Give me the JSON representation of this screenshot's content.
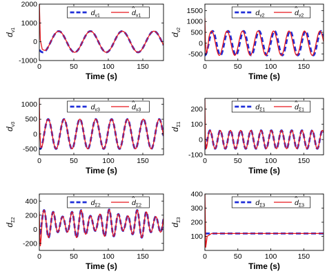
{
  "figure": {
    "background": "#ffffff"
  },
  "chart_data": [
    {
      "type": "line",
      "ylabel": {
        "main": "d",
        "sub": "v1"
      },
      "xlabel": "Time (s)",
      "xlim": [
        0,
        180
      ],
      "ylim": [
        -1000,
        2000
      ],
      "xticks": [
        "0",
        "50",
        "100",
        "150"
      ],
      "yticks": [
        "-1000",
        "0",
        "1000",
        "2000"
      ],
      "grid": false,
      "legend": "top",
      "signal": {
        "offset": 0,
        "amplitude": 560,
        "period": 46,
        "phase_deg": -130
      },
      "transient": {
        "spike": 2000,
        "dip": -400,
        "settle_s": 12
      },
      "series": [
        {
          "name": "d",
          "sub": "v1",
          "hat": false,
          "color": "#1f2ed8",
          "style": "dashed"
        },
        {
          "name": "d",
          "sub": "v1",
          "hat": true,
          "color": "#e8151b",
          "style": "solid"
        }
      ]
    },
    {
      "type": "line",
      "ylabel": {
        "main": "d",
        "sub": "v2"
      },
      "xlabel": "Time (s)",
      "xlim": [
        0,
        180
      ],
      "ylim": [
        -800,
        1800
      ],
      "xticks": [
        "0",
        "50",
        "100",
        "150"
      ],
      "yticks": [
        "-500",
        "0",
        "500",
        "1000",
        "1500"
      ],
      "grid": false,
      "legend": "top",
      "signal": {
        "offset": 0,
        "amplitude": 560,
        "period": 23.5,
        "phase_deg": -90
      },
      "transient": {
        "spike": 1100,
        "dip": -450,
        "settle_s": 6
      },
      "red_phase_lead_deg": 25,
      "series": [
        {
          "name": "d",
          "sub": "v2",
          "hat": false,
          "color": "#1f2ed8",
          "style": "dashed"
        },
        {
          "name": "d",
          "sub": "v2",
          "hat": true,
          "color": "#e8151b",
          "style": "solid"
        }
      ]
    },
    {
      "type": "line",
      "ylabel": {
        "main": "d",
        "sub": "v3"
      },
      "xlabel": "Time (s)",
      "xlim": [
        0,
        180
      ],
      "ylim": [
        -700,
        1200
      ],
      "xticks": [
        "0",
        "50",
        "100",
        "150"
      ],
      "yticks": [
        "-500",
        "0",
        "500",
        "1000"
      ],
      "grid": false,
      "legend": "top",
      "signal": {
        "offset": 0,
        "amplitude": 500,
        "period": 23,
        "phase_deg": -110
      },
      "transient": {
        "spike": 1150,
        "dip": -450,
        "settle_s": 6
      },
      "series": [
        {
          "name": "d",
          "sub": "v3",
          "hat": false,
          "color": "#1f2ed8",
          "style": "dashed"
        },
        {
          "name": "d",
          "sub": "v3",
          "hat": true,
          "color": "#e8151b",
          "style": "solid"
        }
      ]
    },
    {
      "type": "line",
      "ylabel": {
        "main": "d",
        "sub": "Σ1"
      },
      "xlabel": "Time (s)",
      "xlim": [
        0,
        180
      ],
      "ylim": [
        -100,
        270
      ],
      "xticks": [
        "0",
        "50",
        "100",
        "150"
      ],
      "yticks": [
        "-100",
        "0",
        "100",
        "200"
      ],
      "grid": false,
      "legend": "top",
      "signal": {
        "offset": 0,
        "amplitude": 60,
        "period": 15.5,
        "phase_deg": -90
      },
      "transient": {
        "spike": 250,
        "dip": -60,
        "settle_s": 5
      },
      "series": [
        {
          "name": "d",
          "sub": "Σ1",
          "hat": false,
          "color": "#1f2ed8",
          "style": "dashed"
        },
        {
          "name": "d",
          "sub": "Σ1",
          "hat": true,
          "color": "#e8151b",
          "style": "solid"
        }
      ]
    },
    {
      "type": "line",
      "ylabel": {
        "main": "d",
        "sub": "Σ2"
      },
      "xlabel": "Time (s)",
      "xlim": [
        0,
        180
      ],
      "ylim": [
        -300,
        500
      ],
      "xticks": [
        "0",
        "50",
        "100",
        "150"
      ],
      "yticks": [
        "-200",
        "0",
        "200",
        "400"
      ],
      "grid": false,
      "legend": "top",
      "signal": {
        "offset": 80,
        "amplitude": 150,
        "period": 13.5,
        "phase_deg": -90
      },
      "modulation": {
        "amplitude": 50,
        "period": 45
      },
      "transient": {
        "spike": 240,
        "dip": -240,
        "settle_s": 4
      },
      "series": [
        {
          "name": "d",
          "sub": "Σ2",
          "hat": false,
          "color": "#1f2ed8",
          "style": "dashed"
        },
        {
          "name": "d",
          "sub": "Σ2",
          "hat": true,
          "color": "#e8151b",
          "style": "solid"
        }
      ]
    },
    {
      "type": "line",
      "ylabel": {
        "main": "d",
        "sub": "Σ3"
      },
      "xlabel": "Time (s)",
      "xlim": [
        0,
        180
      ],
      "ylim": [
        0,
        400
      ],
      "xticks": [
        "0",
        "50",
        "100",
        "150"
      ],
      "yticks": [
        "100",
        "200",
        "300",
        "400"
      ],
      "grid": false,
      "legend": "top",
      "signal": {
        "offset": 120,
        "amplitude": 0,
        "period": 20,
        "phase_deg": 0
      },
      "transient": {
        "spike": 400,
        "dip": 100,
        "settle_s": 10
      },
      "series": [
        {
          "name": "d",
          "sub": "Σ3",
          "hat": false,
          "color": "#1f2ed8",
          "style": "dashed"
        },
        {
          "name": "d",
          "sub": "Σ3",
          "hat": true,
          "color": "#e8151b",
          "style": "solid"
        }
      ]
    }
  ]
}
